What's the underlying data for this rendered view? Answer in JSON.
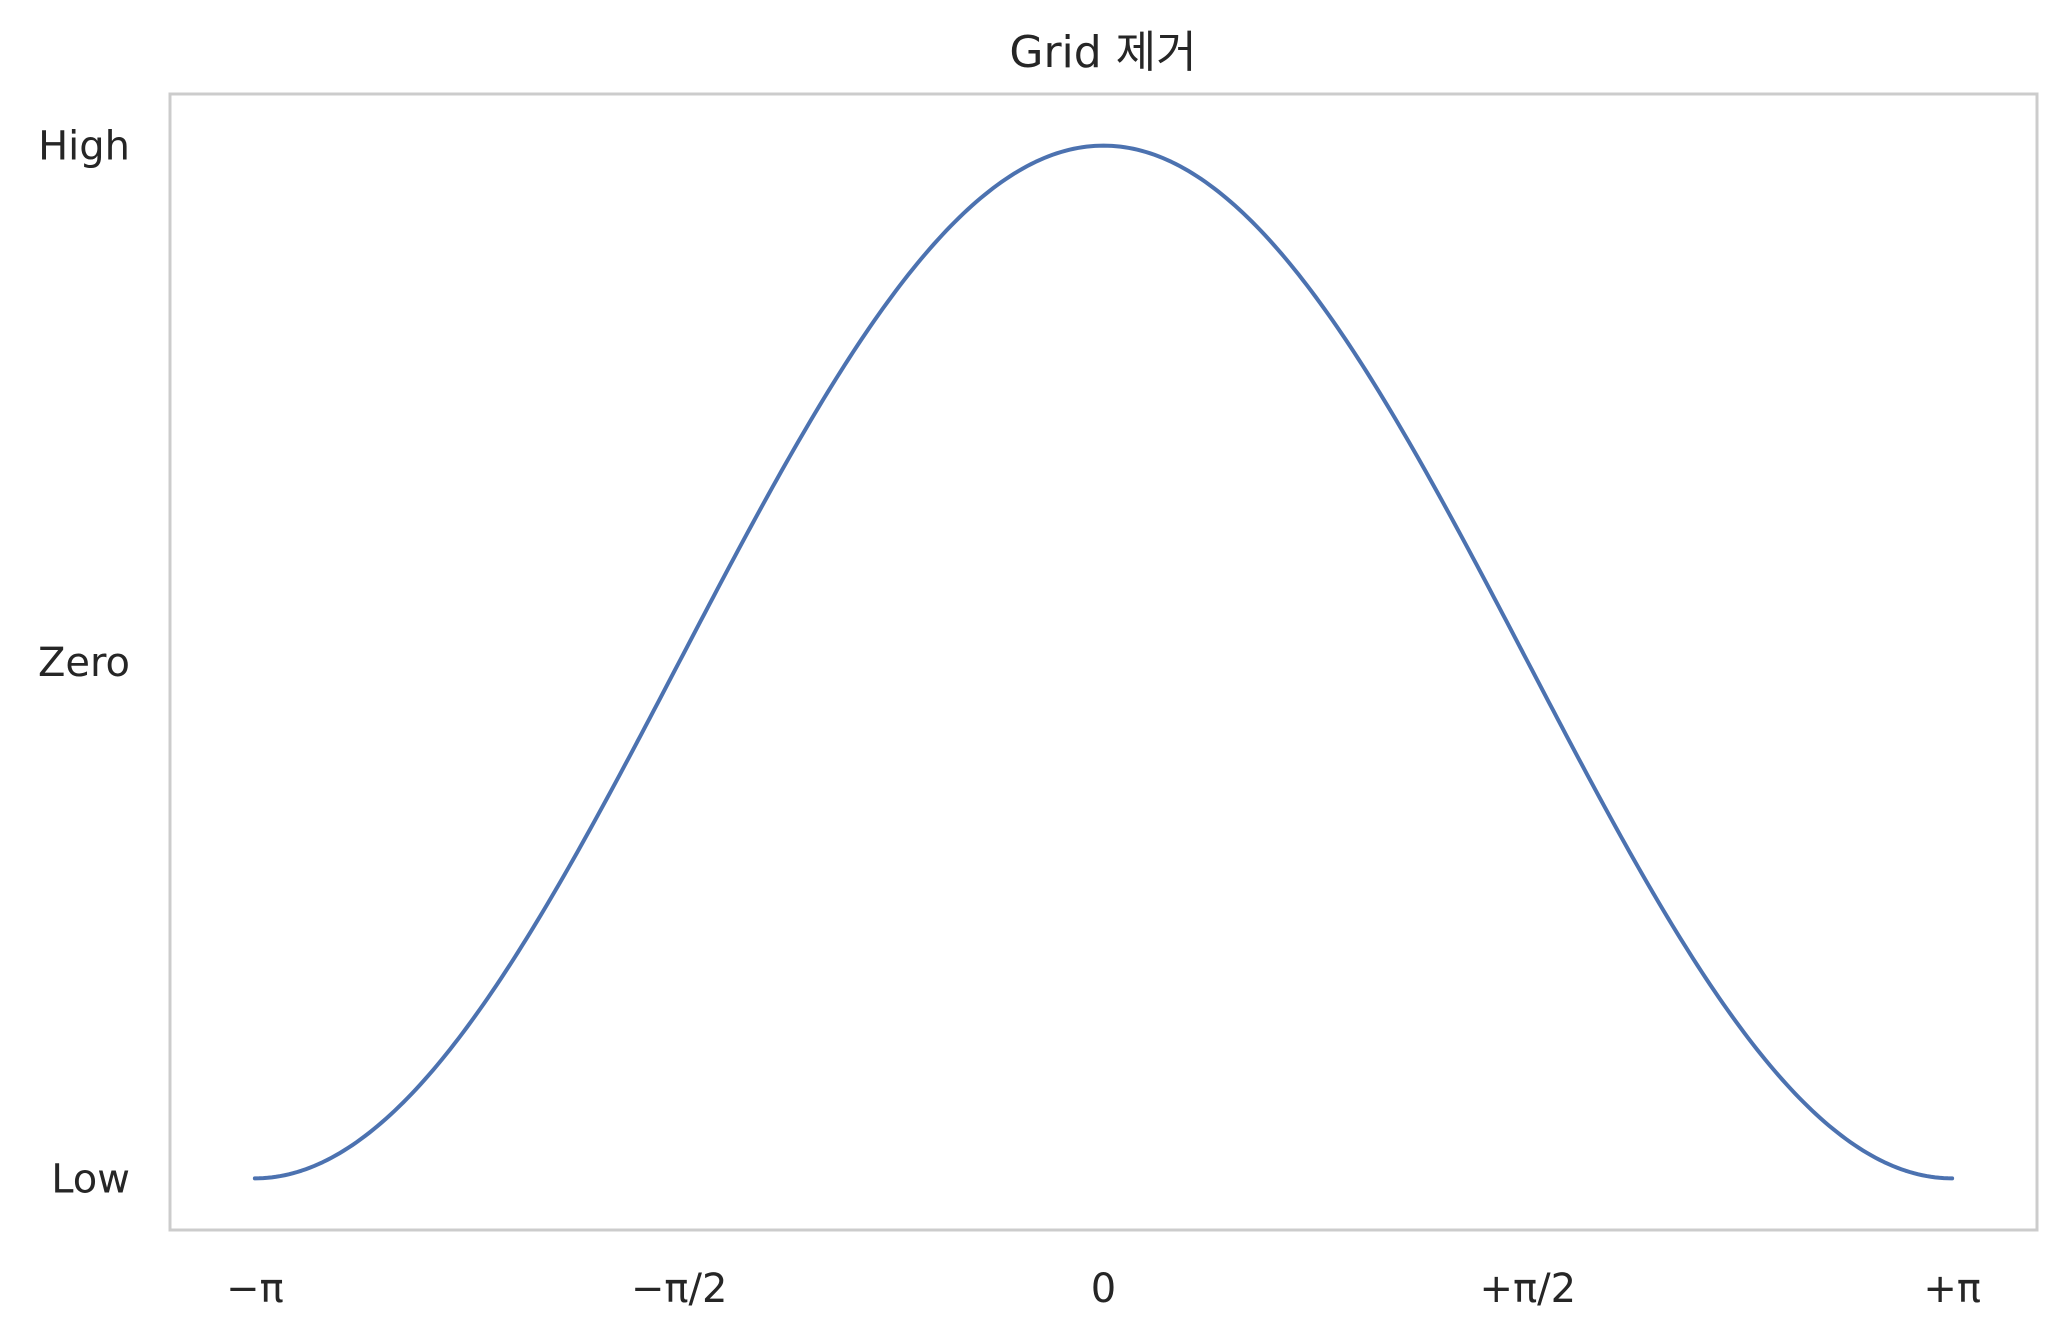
{
  "chart_data": {
    "type": "line",
    "title": "Grid 제거",
    "xlabel": "",
    "ylabel": "",
    "grid": false,
    "xlim": [
      -3.4557519189487724,
      3.4557519189487724
    ],
    "ylim": [
      -1.1,
      1.1
    ],
    "x_ticks": [
      {
        "value": -3.141592653589793,
        "label": "−π"
      },
      {
        "value": -1.5707963267948966,
        "label": "−π/2"
      },
      {
        "value": 0,
        "label": "0"
      },
      {
        "value": 1.5707963267948966,
        "label": "+π/2"
      },
      {
        "value": 3.141592653589793,
        "label": "+π"
      }
    ],
    "y_ticks": [
      {
        "value": -1,
        "label": "Low"
      },
      {
        "value": 0,
        "label": "Zero"
      },
      {
        "value": 1,
        "label": "High"
      }
    ],
    "series": [
      {
        "color": "#4c72b0",
        "function": "cos",
        "x": [
          -3.14159,
          -2.82743,
          -2.51327,
          -2.19911,
          -1.88496,
          -1.5708,
          -1.25664,
          -0.94248,
          -0.62832,
          -0.31416,
          0,
          0.31416,
          0.62832,
          0.94248,
          1.25664,
          1.5708,
          1.88496,
          2.19911,
          2.51327,
          2.82743,
          3.14159
        ],
        "y": [
          -1,
          -0.95106,
          -0.80902,
          -0.58779,
          -0.30902,
          0,
          0.30902,
          0.58779,
          0.80902,
          0.95106,
          1,
          0.95106,
          0.80902,
          0.58779,
          0.30902,
          0,
          -0.30902,
          -0.58779,
          -0.80902,
          -0.95106,
          -1
        ]
      }
    ]
  }
}
